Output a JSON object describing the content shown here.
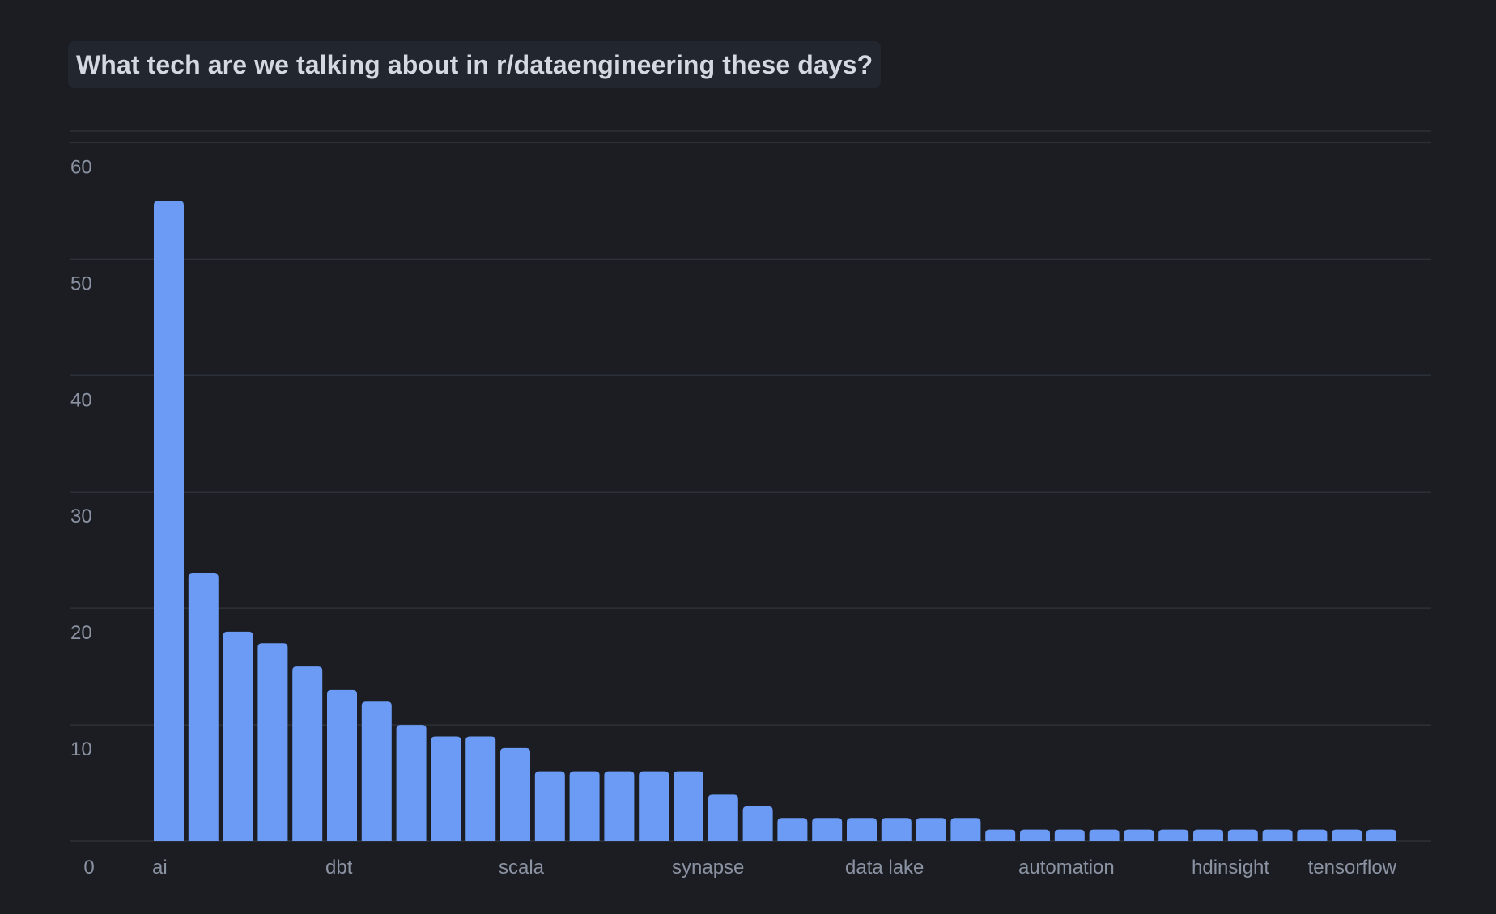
{
  "title": "What tech are we talking about in r/dataengineering these days?",
  "colors": {
    "background": "#1b1d22",
    "bar": "#6b9bf5",
    "grid": "#2c3038",
    "tick_text": "#8b93a3",
    "title_text": "#d4d8e0",
    "title_box": "#22262e"
  },
  "chart_data": {
    "type": "bar",
    "title": "What tech are we talking about in r/dataengineering these days?",
    "xlabel": "",
    "ylabel": "",
    "ylim": [
      0,
      61
    ],
    "yticks": [
      0,
      10,
      20,
      30,
      40,
      50,
      60
    ],
    "grid": true,
    "legend": "none",
    "categories": [
      "ai",
      "",
      "",
      "",
      "",
      "dbt",
      "",
      "",
      "",
      "",
      "scala",
      "",
      "",
      "",
      "",
      "synapse",
      "",
      "",
      "",
      "",
      "data lake",
      "",
      "",
      "",
      "",
      "automation",
      "",
      "",
      "",
      "",
      "hdinsight",
      "",
      "",
      "",
      "",
      "tensorflow"
    ],
    "visible_tick_labels": [
      {
        "index": 0,
        "label": "ai"
      },
      {
        "index": 5,
        "label": "dbt"
      },
      {
        "index": 10,
        "label": "scala"
      },
      {
        "index": 15,
        "label": "synapse"
      },
      {
        "index": 20,
        "label": "data lake"
      },
      {
        "index": 25,
        "label": "automation"
      },
      {
        "index": 30,
        "label": "hdinsight"
      },
      {
        "index": 35,
        "label": "tensorflow"
      }
    ],
    "values": [
      55,
      23,
      18,
      17,
      15,
      13,
      12,
      10,
      9,
      9,
      8,
      6,
      6,
      6,
      6,
      6,
      4,
      3,
      2,
      2,
      2,
      2,
      2,
      2,
      1,
      1,
      1,
      1,
      1,
      1,
      1,
      1,
      1,
      1,
      1,
      1
    ]
  }
}
